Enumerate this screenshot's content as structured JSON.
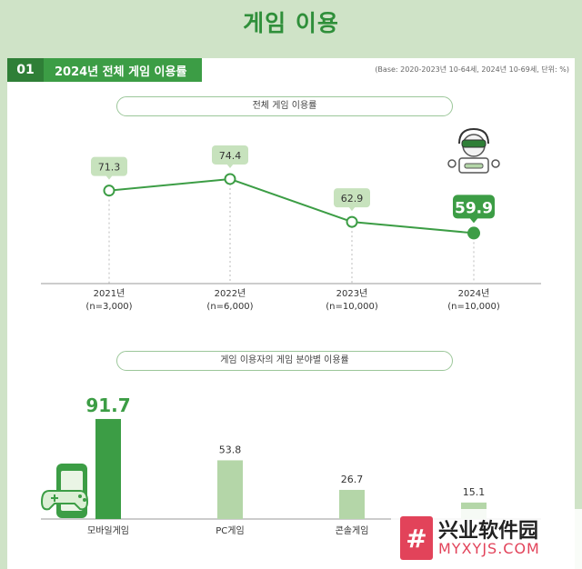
{
  "page_title": "게임 이용",
  "section": {
    "number": "01",
    "title": "2024년 전체 게임 이용률",
    "base_note": "(Base: 2020-2023년 10-64세, 2024년 10-69세, 단위: %)"
  },
  "icons": {
    "gamer_icon": "gamer-thumbs-up-icon",
    "mobile_icon": "mobile-gamepad-icon"
  },
  "colors": {
    "accent": "#3c9d45",
    "dark_accent": "#2f7f37",
    "light_bar": "#b4d6a8",
    "highlight_bar": "#3c9d45"
  },
  "chart_data": [
    {
      "type": "line",
      "title": "전체 게임 이용률",
      "categories": [
        "2021년",
        "2022년",
        "2023년",
        "2024년"
      ],
      "sample_sizes": [
        "(n=3,000)",
        "(n=6,000)",
        "(n=10,000)",
        "(n=10,000)"
      ],
      "values": [
        71.3,
        74.4,
        62.9,
        59.9
      ],
      "value_labels": [
        "71.3",
        "74.4",
        "62.9",
        "59.9"
      ],
      "highlight_index": 3,
      "ylim": [
        0,
        100
      ],
      "grid": false
    },
    {
      "type": "bar",
      "title": "게임 이용자의 게임 분야별 이용률",
      "categories": [
        "모바일게임",
        "PC게임",
        "콘솔게임",
        ""
      ],
      "values": [
        91.7,
        53.8,
        26.7,
        15.1
      ],
      "value_labels": [
        "91.7",
        "53.8",
        "26.7",
        "15.1"
      ],
      "highlight_index": 0,
      "ylim": [
        0,
        100
      ],
      "grid": false
    }
  ],
  "watermark": {
    "logo": "#",
    "cn": "兴业软件园",
    "en": "MYXYJS.COM"
  }
}
